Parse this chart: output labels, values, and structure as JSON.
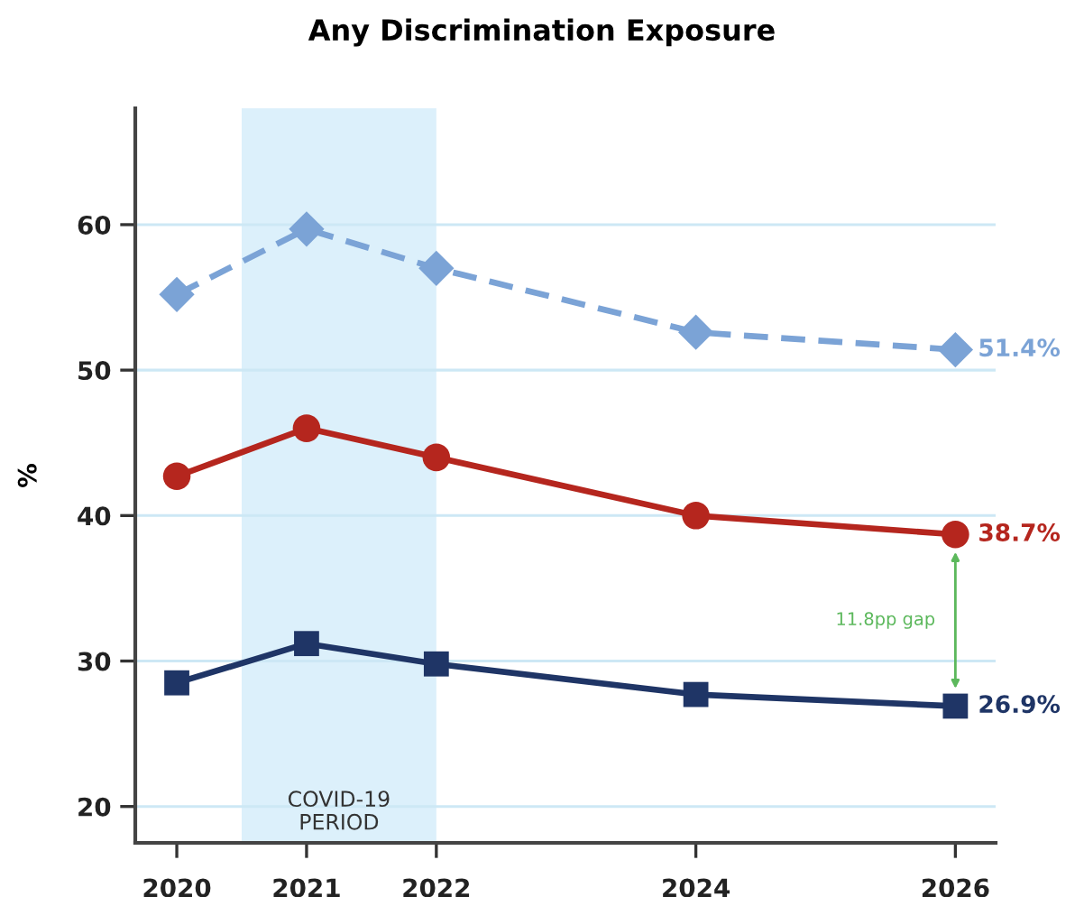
{
  "chart_data": {
    "type": "line",
    "title": "Any Discrimination Exposure",
    "ylabel": "%",
    "x": [
      2020,
      2021,
      2022,
      2024,
      2026
    ],
    "series": [
      {
        "color": "#7ba3d6",
        "marker": "diamond",
        "line_style": "dashed",
        "values": [
          55.2,
          59.7,
          57.0,
          52.6,
          51.4
        ],
        "value_labels": [
          null,
          null,
          null,
          null,
          "51.4%"
        ]
      },
      {
        "color": "#b5261e",
        "marker": "circle",
        "line_style": "solid",
        "values": [
          42.7,
          46.0,
          44.0,
          40.0,
          38.7
        ],
        "value_labels": [
          null,
          null,
          null,
          null,
          "38.7%"
        ]
      },
      {
        "color": "#1f3566",
        "marker": "square",
        "line_style": "solid",
        "values": [
          28.5,
          31.2,
          29.8,
          27.7,
          26.9
        ],
        "value_labels": [
          null,
          null,
          null,
          null,
          "26.9%"
        ]
      }
    ],
    "xlim": [
      2019.68,
      2026.31
    ],
    "xticks": [
      2020,
      2021,
      2022,
      2024,
      2026
    ],
    "ylim": [
      17.5,
      68
    ],
    "yticks": [
      20,
      30,
      40,
      50,
      60
    ],
    "grid": "y",
    "bands": [
      {
        "axis": "x",
        "from": 2020.5,
        "to": 2022,
        "label": "COVID-19\nPERIOD",
        "color": "#dcf0fb"
      }
    ],
    "annotations": [
      "11.8pp gap"
    ]
  }
}
